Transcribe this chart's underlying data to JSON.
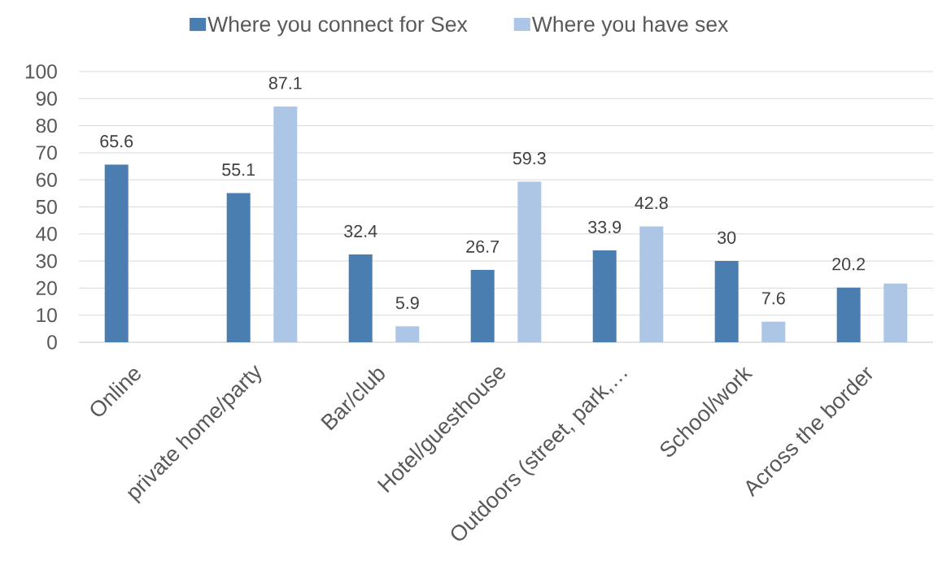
{
  "chart_data": {
    "type": "bar",
    "categories": [
      "Online",
      "private home/party",
      "Bar/club",
      "Hotel/guesthouse",
      "Outdoors (street, park,…",
      "School/work",
      "Across the border"
    ],
    "series": [
      {
        "name": "Where you connect for Sex",
        "color": "#4a7eb1",
        "values": [
          65.6,
          55.1,
          32.4,
          26.7,
          33.9,
          30,
          20.2
        ],
        "value_labels": [
          "65.6",
          "55.1",
          "32.4",
          "26.7",
          "33.9",
          "30",
          "20.2"
        ]
      },
      {
        "name": "Where you have sex",
        "color": "#aec6e6",
        "values": [
          null,
          87.1,
          5.9,
          59.3,
          42.8,
          7.6,
          21.7
        ],
        "value_labels": [
          null,
          "87.1",
          "5.9",
          "59.3",
          "42.8",
          "7.6",
          null
        ]
      }
    ],
    "ylim": [
      0,
      100
    ],
    "yticks": [
      0,
      10,
      20,
      30,
      40,
      50,
      60,
      70,
      80,
      90,
      100
    ],
    "grid": "y",
    "legend": "top"
  }
}
